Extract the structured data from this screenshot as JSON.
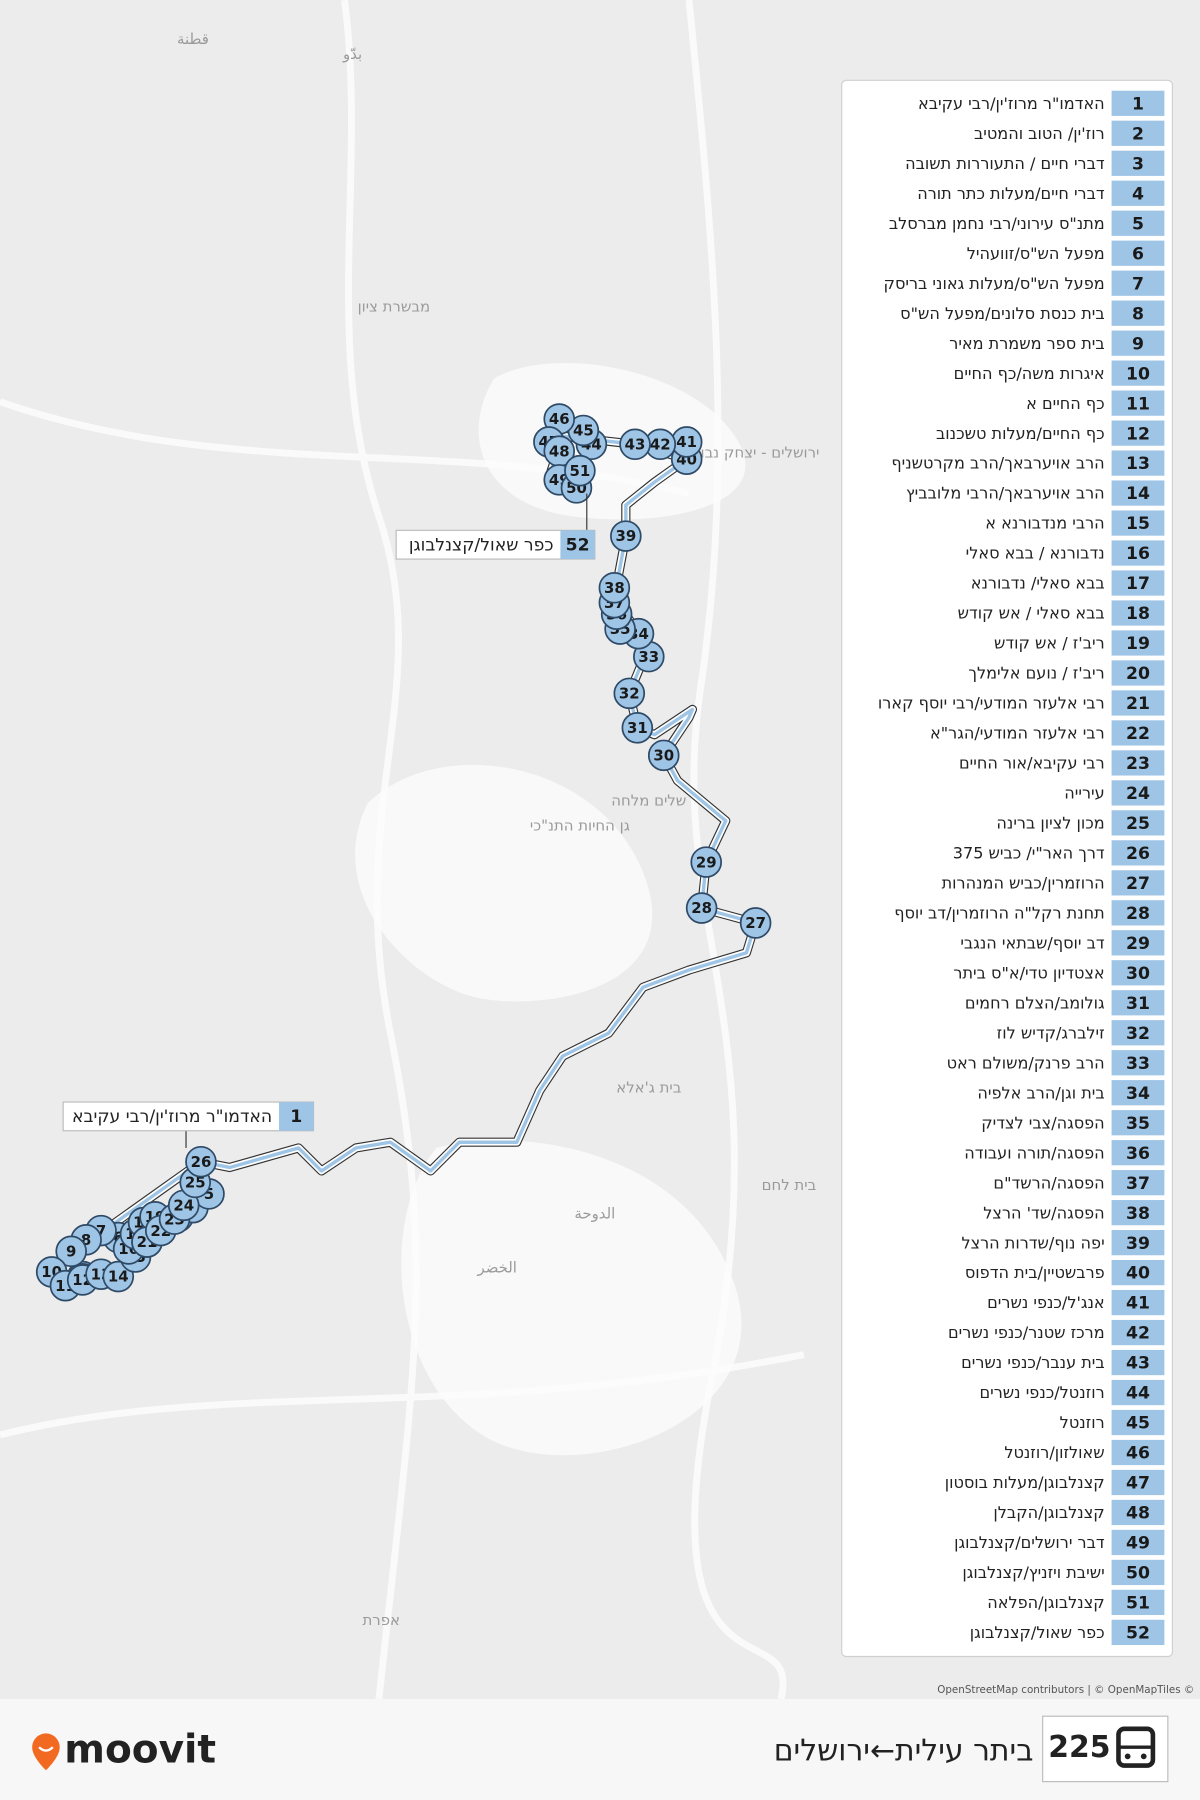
{
  "map_labels": [
    "قطنة",
    "بدّو",
    "מבשרת ציון",
    "ירושלים - יצחק נבון",
    "שלים מלחה",
    "גן החיות התנ\"כי",
    "בית ג'אלא",
    "בית לחם",
    "الدوحة",
    "الخضر",
    "אפרת"
  ],
  "stops": [
    {
      "number": 1,
      "name": "האדמו\"ר מרוז'ין/רבי עקיבא"
    },
    {
      "number": 2,
      "name": "רוז'ין/ הטוב והמטיב"
    },
    {
      "number": 3,
      "name": "דברי חיים / התעוררות תשובה"
    },
    {
      "number": 4,
      "name": "דברי חיים/מעלות כתר תורה"
    },
    {
      "number": 5,
      "name": "מתנ\"ס עירוני/רבי נחמן מברסלב"
    },
    {
      "number": 6,
      "name": "מפעל הש\"ס/זוועהיל"
    },
    {
      "number": 7,
      "name": "מפעל הש\"ס/מעלות גאוני בריסק"
    },
    {
      "number": 8,
      "name": "בית כנסת סלונים/מפעל הש\"ס"
    },
    {
      "number": 9,
      "name": "בית ספר משמרת מאיר"
    },
    {
      "number": 10,
      "name": "איגרות משה/כף החיים"
    },
    {
      "number": 11,
      "name": "כף החיים א"
    },
    {
      "number": 12,
      "name": "כף החיים/מעלות טשכנוב"
    },
    {
      "number": 13,
      "name": "הרב אויערבאך/הרב מקרטשניף"
    },
    {
      "number": 14,
      "name": "הרב אויערבאך/הרבי מלובביץ"
    },
    {
      "number": 15,
      "name": "הרבי מנדבורנא א"
    },
    {
      "number": 16,
      "name": "נדבורנא / בבא סאלי"
    },
    {
      "number": 17,
      "name": "בבא סאלי/ נדבורנא"
    },
    {
      "number": 18,
      "name": "בבא סאלי / אש קודש"
    },
    {
      "number": 19,
      "name": "ריב'ז / אש קודש"
    },
    {
      "number": 20,
      "name": "ריב'ז / נועם אלימלך"
    },
    {
      "number": 21,
      "name": "רבי אלעזר המודעי/רבי יוסף קארו"
    },
    {
      "number": 22,
      "name": "רבי אלעזר המודעי/הגר\"א"
    },
    {
      "number": 23,
      "name": "רבי עקיבא/אור החיים"
    },
    {
      "number": 24,
      "name": "עירייה"
    },
    {
      "number": 25,
      "name": "מכון לציון ברינה"
    },
    {
      "number": 26,
      "name": "דרך האר\"י/ כביש 375"
    },
    {
      "number": 27,
      "name": "הרוזמרין/כביש המנהרות"
    },
    {
      "number": 28,
      "name": "תחנת רקל\"ה הרוזמרין/דב יוסף"
    },
    {
      "number": 29,
      "name": "דב יוסף/שבתאי הנגבי"
    },
    {
      "number": 30,
      "name": "אצטדיון טדי/א\"ס ביתר"
    },
    {
      "number": 31,
      "name": "גולומב/הצלם רחמים"
    },
    {
      "number": 32,
      "name": "זילברג/קדיש לוז"
    },
    {
      "number": 33,
      "name": "הרב פרנק/משולם ראט"
    },
    {
      "number": 34,
      "name": "בית וגן/הרב אלפיה"
    },
    {
      "number": 35,
      "name": "הפסגה/צבי לצדיק"
    },
    {
      "number": 36,
      "name": "הפסגה/תורה ועבודה"
    },
    {
      "number": 37,
      "name": "הפסגה/הרשד\"ם"
    },
    {
      "number": 38,
      "name": "הפסגה/שד' הרצל"
    },
    {
      "number": 39,
      "name": "יפה נוף/שדרות הרצל"
    },
    {
      "number": 40,
      "name": "פרבשטיין/בית הדפוס"
    },
    {
      "number": 41,
      "name": "אנג'ל/כנפי נשרים"
    },
    {
      "number": 42,
      "name": "מרכז שטנר/כנפי נשרים"
    },
    {
      "number": 43,
      "name": "בית ענבר/כנפי נשרים"
    },
    {
      "number": 44,
      "name": "רוזנטל/כנפי נשרים"
    },
    {
      "number": 45,
      "name": "רוזנטל"
    },
    {
      "number": 46,
      "name": "שאולזון/רוזנטל"
    },
    {
      "number": 47,
      "name": "קצנלבוגן/מעלות בוסטון"
    },
    {
      "number": 48,
      "name": "קצנלבוגן/הקבלן"
    },
    {
      "number": 49,
      "name": "דבר ירושלים/קצנלבוגן"
    },
    {
      "number": 50,
      "name": "ישיבת ויזניץ/קצנלבוגן"
    },
    {
      "number": 51,
      "name": "קצנלבוגן/הפלאה"
    },
    {
      "number": 52,
      "name": "כפר שאול/קצנלבוגן"
    }
  ],
  "attribution": "OpenStreetMap contributors | © OpenMapTiles ©",
  "route": {
    "number": "225",
    "title": "ביתר עילית←ירושלים"
  },
  "logo": "moovit"
}
